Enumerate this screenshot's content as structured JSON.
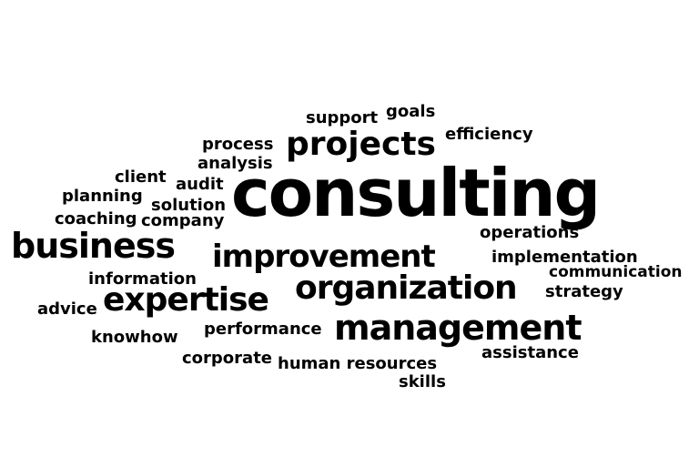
{
  "words": {
    "support": "support",
    "goals": "goals",
    "process": "process",
    "projects": "projects",
    "efficiency": "efficiency",
    "analysis": "analysis",
    "client": "client",
    "audit": "audit",
    "consulting": "consulting",
    "planning": "planning",
    "solution": "solution",
    "coaching": "coaching",
    "company": "company",
    "business": "business",
    "operations": "operations",
    "improvement": "improvement",
    "implementation": "implementation",
    "information": "information",
    "communication": "communication",
    "advice": "advice",
    "expertise": "expertise",
    "organization": "organization",
    "strategy": "strategy",
    "knowhow": "knowhow",
    "performance": "performance",
    "management": "management",
    "corporate": "corporate",
    "human_resources": "human resources",
    "assistance": "assistance",
    "skills": "skills"
  }
}
